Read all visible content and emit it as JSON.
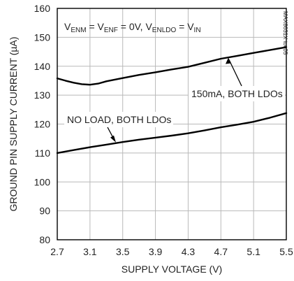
{
  "chart_data": {
    "type": "line",
    "xlabel": "SUPPLY VOLTAGE (V)",
    "ylabel": "GROUND PIN SUPPLY CURRENT (µA)",
    "xlim": [
      2.7,
      5.5
    ],
    "ylim": [
      80,
      160
    ],
    "x_ticks": [
      "2.7",
      "3.1",
      "3.5",
      "3.9",
      "4.3",
      "4.7",
      "5.1",
      "5.5"
    ],
    "y_ticks": [
      "80",
      "90",
      "100",
      "110",
      "120",
      "130",
      "140",
      "150",
      "160"
    ],
    "grid": true,
    "conditions": {
      "parts": [
        {
          "t": "V",
          "sub": false
        },
        {
          "t": "ENM",
          "sub": true
        },
        {
          "t": " = V",
          "sub": false
        },
        {
          "t": "ENF",
          "sub": true
        },
        {
          "t": " = 0V, V",
          "sub": false
        },
        {
          "t": "ENLDO",
          "sub": true
        },
        {
          "t": " = V",
          "sub": false
        },
        {
          "t": "IN",
          "sub": true
        }
      ]
    },
    "watermark": "MAX8631X toc05",
    "series": [
      {
        "name": "150mA, BOTH LDOs",
        "x": [
          2.7,
          2.8,
          2.9,
          3.0,
          3.1,
          3.2,
          3.3,
          3.5,
          3.7,
          3.9,
          4.1,
          4.3,
          4.5,
          4.7,
          4.9,
          5.1,
          5.3,
          5.5
        ],
        "y": [
          135.8,
          135.0,
          134.3,
          133.8,
          133.6,
          134.0,
          134.8,
          135.9,
          137.0,
          137.9,
          138.9,
          139.8,
          141.2,
          142.6,
          143.6,
          144.6,
          145.6,
          146.6
        ]
      },
      {
        "name": "NO LOAD, BOTH LDOs",
        "x": [
          2.7,
          2.9,
          3.1,
          3.3,
          3.5,
          3.7,
          3.9,
          4.1,
          4.3,
          4.5,
          4.7,
          4.9,
          5.1,
          5.3,
          5.5
        ],
        "y": [
          110.0,
          111.0,
          112.0,
          112.9,
          113.8,
          114.6,
          115.3,
          116.0,
          116.8,
          117.8,
          118.9,
          119.8,
          120.8,
          122.2,
          123.8
        ]
      }
    ],
    "annotations": [
      {
        "text": "NO LOAD, BOTH LDOs",
        "series": 1
      },
      {
        "text": "150mA, BOTH LDOs",
        "series": 0
      }
    ]
  }
}
